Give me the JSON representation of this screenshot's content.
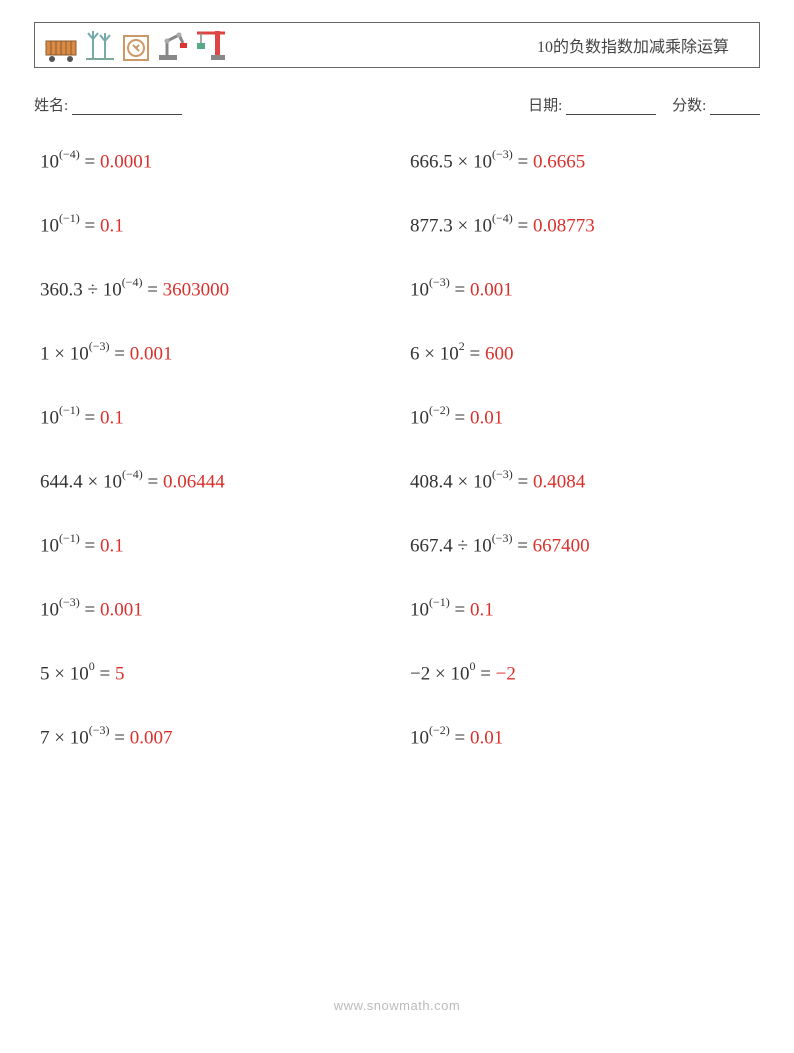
{
  "header": {
    "title": "10的负数指数加减乘除运算"
  },
  "info": {
    "name_label": "姓名:",
    "date_label": "日期:",
    "score_label": "分数:"
  },
  "columns": [
    [
      {
        "base": "10",
        "exp": "(−4)",
        "eq": " = ",
        "ans": "0.0001",
        "prefix": ""
      },
      {
        "base": "10",
        "exp": "(−1)",
        "eq": " = ",
        "ans": "0.1",
        "prefix": ""
      },
      {
        "base": "10",
        "exp": "(−4)",
        "eq": " = ",
        "ans": "3603000",
        "prefix": "360.3 ÷ "
      },
      {
        "base": "10",
        "exp": "(−3)",
        "eq": " = ",
        "ans": "0.001",
        "prefix": "1 × "
      },
      {
        "base": "10",
        "exp": "(−1)",
        "eq": " = ",
        "ans": "0.1",
        "prefix": ""
      },
      {
        "base": "10",
        "exp": "(−4)",
        "eq": " = ",
        "ans": "0.06444",
        "prefix": "644.4 × "
      },
      {
        "base": "10",
        "exp": "(−1)",
        "eq": " = ",
        "ans": "0.1",
        "prefix": ""
      },
      {
        "base": "10",
        "exp": "(−3)",
        "eq": " = ",
        "ans": "0.001",
        "prefix": ""
      },
      {
        "base": "10",
        "exp": "0",
        "eq": " = ",
        "ans": "5",
        "prefix": "5 × "
      },
      {
        "base": "10",
        "exp": "(−3)",
        "eq": " = ",
        "ans": "0.007",
        "prefix": "7 × "
      }
    ],
    [
      {
        "base": "10",
        "exp": "(−3)",
        "eq": " = ",
        "ans": "0.6665",
        "prefix": "666.5 × "
      },
      {
        "base": "10",
        "exp": "(−4)",
        "eq": " = ",
        "ans": "0.08773",
        "prefix": "877.3 × "
      },
      {
        "base": "10",
        "exp": "(−3)",
        "eq": " = ",
        "ans": "0.001",
        "prefix": ""
      },
      {
        "base": "10",
        "exp": "2",
        "eq": " = ",
        "ans": "600",
        "prefix": "6 × "
      },
      {
        "base": "10",
        "exp": "(−2)",
        "eq": " = ",
        "ans": "0.01",
        "prefix": ""
      },
      {
        "base": "10",
        "exp": "(−3)",
        "eq": " = ",
        "ans": "0.4084",
        "prefix": "408.4 × "
      },
      {
        "base": "10",
        "exp": "(−3)",
        "eq": " = ",
        "ans": "667400",
        "prefix": "667.4 ÷ "
      },
      {
        "base": "10",
        "exp": "(−1)",
        "eq": " = ",
        "ans": "0.1",
        "prefix": ""
      },
      {
        "base": "10",
        "exp": "0",
        "eq": " = ",
        "ans": "−2",
        "prefix": "−2 × "
      },
      {
        "base": "10",
        "exp": "(−2)",
        "eq": " = ",
        "ans": "0.01",
        "prefix": ""
      }
    ]
  ],
  "footer": {
    "text": "www.snowmath.com"
  },
  "colors": {
    "answer": "#d9302c",
    "text": "#333333",
    "border": "#666666",
    "footer": "#bbbbbb"
  }
}
